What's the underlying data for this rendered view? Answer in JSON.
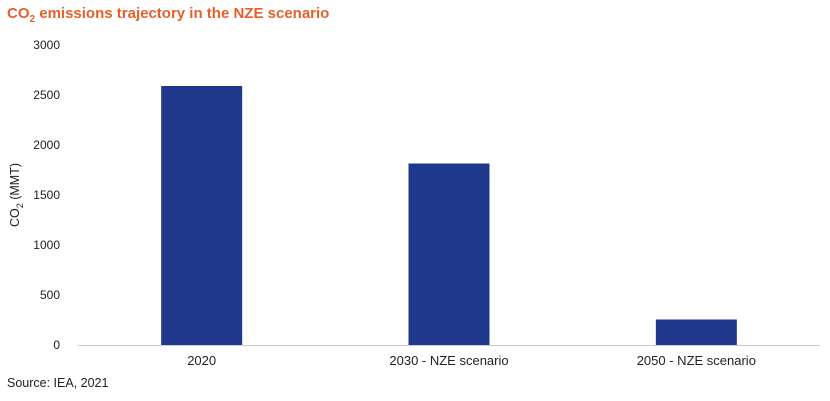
{
  "title": {
    "prefix": "CO",
    "subscript": "2",
    "suffix": " emissions trajectory in the NZE scenario"
  },
  "source": "Source: IEA, 2021",
  "colors": {
    "title": "#e5602b",
    "bar": "#1f388c",
    "axis": "#cccccc",
    "text": "#222222"
  },
  "chart_data": {
    "type": "bar",
    "categories": [
      "2020",
      "2030 - NZE scenario",
      "2050 - NZE scenario"
    ],
    "values": [
      2590,
      1815,
      255
    ],
    "ylabel_prefix": "CO",
    "ylabel_subscript": "2",
    "ylabel_suffix": " (MMT)",
    "ylim": [
      0,
      3000
    ],
    "yticks": [
      0,
      500,
      1000,
      1500,
      2000,
      2500,
      3000
    ],
    "grid": false,
    "legend": "none"
  }
}
